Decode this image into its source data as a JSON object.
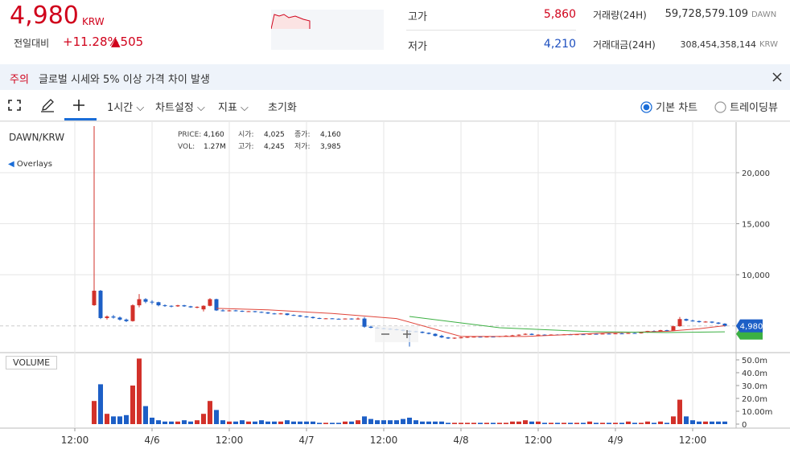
{
  "header": {
    "price": "4,980",
    "currency": "KRW",
    "change_label": "전일대비",
    "change_pct": "+11.28%",
    "change_amt": "▲505",
    "stats": [
      {
        "label": "고가",
        "value": "5,860"
      },
      {
        "label": "저가",
        "value": "4,210"
      },
      {
        "label": "거래량(24H)",
        "value": "59,728,579.109",
        "unit": "DAWN"
      },
      {
        "label": "거래대금(24H)",
        "value": "308,454,358,144",
        "unit": "KRW"
      }
    ]
  },
  "notice": {
    "tag": "주의",
    "text": "글로벌 시세와 5% 이상 가격 차이 발생"
  },
  "toolbar": {
    "interval": "1시간",
    "settings": "차트설정",
    "indicators": "지표",
    "reset": "초기화",
    "modes": [
      "기본 차트",
      "트레이딩뷰"
    ]
  },
  "chart": {
    "type": "candlestick",
    "symbol": "DAWN/KRW",
    "overlays": "Overlays",
    "volume_title": "VOLUME",
    "info": [
      [
        "PRICE:",
        "4,160"
      ],
      [
        "시가:",
        "4,025"
      ],
      [
        "종가:",
        "4,160"
      ],
      [
        "VOL:",
        "1.27M"
      ],
      [
        "고가:",
        "4,245"
      ],
      [
        "저가:",
        "3,985"
      ]
    ],
    "up_color": "#d2312a",
    "down_color": "#1d5fc6",
    "xlim": [
      -11.625,
      102.75
    ],
    "xticks": [
      {
        "value": 0,
        "label": "12:00"
      },
      {
        "value": 12,
        "label": "4/6"
      },
      {
        "value": 24,
        "label": "12:00"
      },
      {
        "value": 36,
        "label": "4/7"
      },
      {
        "value": 48,
        "label": "12:00"
      },
      {
        "value": 60,
        "label": "4/8"
      },
      {
        "value": 72,
        "label": "12:00"
      },
      {
        "value": 84,
        "label": "4/9"
      },
      {
        "value": 96,
        "label": "12:00"
      }
    ],
    "ylim": [
      2440,
      24960
    ],
    "yticks": [
      {
        "value": 20000,
        "label": "20,000"
      },
      {
        "value": 15000,
        "label": "15,000"
      },
      {
        "value": 10000,
        "label": "10,000"
      }
    ],
    "vlim": [
      0,
      55000000
    ],
    "vticks": [
      {
        "value": 50000000,
        "label": "50.0m"
      },
      {
        "value": 40000000,
        "label": "40.0m"
      },
      {
        "value": 30000000,
        "label": "30.0m"
      },
      {
        "value": 20000000,
        "label": "20.0m"
      },
      {
        "value": 10000000,
        "label": "10.00m"
      },
      0
    ],
    "last_price": {
      "value": 4980,
      "label": "4,980"
    },
    "candles": {
      "x": [
        3,
        4,
        5,
        6,
        7,
        8,
        9,
        10,
        11,
        12,
        13,
        14,
        15,
        16,
        17,
        18,
        19,
        20,
        21,
        22,
        23,
        24,
        25,
        26,
        27,
        28,
        29,
        30,
        31,
        32,
        33,
        34,
        35,
        36,
        37,
        38,
        39,
        40,
        41,
        42,
        43,
        44,
        45,
        46,
        47,
        48,
        49,
        50,
        51,
        52,
        53,
        54,
        55,
        56,
        57,
        58,
        59,
        60,
        61,
        62,
        63,
        64,
        65,
        66,
        67,
        68,
        69,
        70,
        71,
        72,
        73,
        74,
        75,
        76,
        77,
        78,
        79,
        80,
        81,
        82,
        83,
        84,
        85,
        86,
        87,
        88,
        89,
        90,
        91,
        92,
        93,
        94,
        95,
        96,
        97,
        98,
        99,
        100,
        101
      ],
      "open": [
        7010,
        8430,
        5750,
        5900,
        5800,
        5600,
        5450,
        7000,
        7600,
        7350,
        7300,
        7000,
        6950,
        6900,
        7000,
        6900,
        6800,
        6600,
        6950,
        7600,
        6500,
        6450,
        6500,
        6450,
        6400,
        6420,
        6350,
        6300,
        6200,
        6150,
        6200,
        6050,
        6000,
        5900,
        5850,
        5750,
        5700,
        5720,
        5680,
        5650,
        5700,
        5650,
        5700,
        4900,
        4800,
        4750,
        4700,
        4650,
        4600,
        4500,
        4450,
        4400,
        4300,
        4200,
        4000,
        3850,
        3750,
        3820,
        3850,
        3900,
        3920,
        3880,
        3930,
        3900,
        3980,
        4020,
        4050,
        4120,
        4200,
        4100,
        4120,
        4080,
        4130,
        4100,
        4150,
        4120,
        4160,
        4140,
        4200,
        4180,
        4220,
        4190,
        4240,
        4220,
        4280,
        4250,
        4330,
        4480,
        4450,
        4560,
        4500,
        4950,
        5650,
        5500,
        5450,
        5350,
        5400,
        5300,
        5200
      ],
      "high": [
        24570,
        8500,
        6000,
        6050,
        5900,
        5700,
        7100,
        8100,
        7700,
        7500,
        7350,
        7100,
        7000,
        7050,
        7050,
        6950,
        6900,
        7000,
        7700,
        7650,
        6600,
        6550,
        6550,
        6500,
        6450,
        6450,
        6400,
        6350,
        6250,
        6250,
        6220,
        6100,
        6050,
        5950,
        5900,
        5800,
        5750,
        5750,
        5720,
        5720,
        5730,
        5800,
        5850,
        5000,
        4900,
        4800,
        4750,
        4700,
        4650,
        4550,
        4500,
        4450,
        4350,
        4250,
        4100,
        3900,
        3850,
        3900,
        3950,
        3950,
        3950,
        3950,
        3980,
        4000,
        4050,
        4100,
        4150,
        4250,
        4250,
        4150,
        4150,
        4150,
        4160,
        4180,
        4200,
        4180,
        4200,
        4220,
        4250,
        4240,
        4260,
        4260,
        4280,
        4300,
        4320,
        4350,
        4500,
        4550,
        4600,
        4600,
        5000,
        5860,
        5700,
        5600,
        5500,
        5450,
        5420,
        5350,
        5250
      ],
      "low": [
        6950,
        5650,
        5600,
        5700,
        5500,
        5350,
        5400,
        6800,
        7200,
        7100,
        6900,
        6850,
        6800,
        6850,
        6850,
        6750,
        6700,
        6400,
        6900,
        6450,
        6400,
        6400,
        6400,
        6350,
        6350,
        6300,
        6250,
        6150,
        6100,
        6100,
        6000,
        5950,
        5850,
        5800,
        5700,
        5650,
        5650,
        5650,
        5600,
        5620,
        5600,
        5600,
        4800,
        4750,
        4700,
        4650,
        4600,
        4550,
        4450,
        2950,
        4350,
        4250,
        4150,
        3950,
        3800,
        3700,
        3700,
        3750,
        3800,
        3850,
        3850,
        3850,
        3880,
        3880,
        3950,
        3980,
        4000,
        4080,
        4080,
        4050,
        4050,
        4050,
        4080,
        4080,
        4100,
        4100,
        4120,
        4120,
        4150,
        4150,
        4170,
        4170,
        4200,
        4200,
        4230,
        4230,
        4300,
        4400,
        4420,
        4450,
        4480,
        4900,
        5450,
        5400,
        5300,
        5300,
        5250,
        5150,
        4900
      ],
      "close": [
        8430,
        5750,
        5900,
        5800,
        5600,
        5450,
        7000,
        7600,
        7350,
        7300,
        7000,
        6950,
        6900,
        7000,
        6900,
        6800,
        6850,
        6950,
        7600,
        6500,
        6450,
        6500,
        6450,
        6400,
        6420,
        6350,
        6300,
        6200,
        6150,
        6200,
        6050,
        6000,
        5900,
        5850,
        5750,
        5700,
        5720,
        5680,
        5650,
        5700,
        5650,
        5700,
        4900,
        4800,
        4750,
        4700,
        4650,
        4600,
        4500,
        4450,
        4400,
        4300,
        4200,
        4000,
        3850,
        3750,
        3820,
        3850,
        3900,
        3920,
        3880,
        3930,
        3900,
        3980,
        4020,
        4050,
        4120,
        4200,
        4100,
        4120,
        4080,
        4130,
        4100,
        4150,
        4120,
        4160,
        4140,
        4200,
        4180,
        4220,
        4190,
        4240,
        4220,
        4280,
        4250,
        4330,
        4480,
        4450,
        4560,
        4500,
        4950,
        5650,
        5500,
        5450,
        5350,
        5400,
        5300,
        5200,
        4980
      ],
      "volume": [
        18000000,
        31000000,
        8000000,
        6000000,
        6000000,
        7000000,
        30000000,
        51000000,
        14000000,
        5000000,
        3000000,
        2000000,
        2000000,
        2000000,
        3000000,
        2000000,
        3000000,
        8000000,
        18000000,
        11000000,
        3000000,
        2000000,
        2000000,
        3000000,
        2000000,
        2000000,
        3000000,
        2000000,
        2000000,
        2000000,
        3000000,
        2000000,
        2000000,
        2000000,
        2000000,
        1000000,
        1000000,
        1000000,
        1000000,
        2000000,
        2000000,
        3000000,
        6000000,
        4000000,
        3000000,
        3000000,
        3000000,
        3000000,
        4000000,
        5000000,
        3000000,
        2000000,
        2000000,
        2000000,
        2000000,
        1000000,
        1000000,
        1000000,
        1000000,
        1000000,
        1000000,
        1000000,
        1000000,
        1000000,
        1000000,
        2000000,
        2000000,
        3000000,
        2000000,
        2000000,
        1000000,
        1000000,
        1000000,
        1000000,
        1000000,
        1000000,
        1000000,
        2000000,
        1000000,
        1000000,
        1000000,
        1000000,
        1000000,
        2000000,
        1000000,
        1000000,
        2000000,
        1000000,
        2000000,
        1000000,
        6000000,
        19000000,
        6000000,
        3000000,
        2000000,
        2000000,
        2000000,
        2000000,
        2000000
      ]
    },
    "lines": [
      {
        "color": "#e0453a",
        "x": [
          22,
          30,
          40,
          50,
          60,
          70,
          83,
          92,
          97,
          101
        ],
        "values": [
          6700,
          6550,
          6200,
          5700,
          3950,
          3950,
          4300,
          4450,
          4700,
          5000
        ]
      },
      {
        "color": "#3cb043",
        "x": [
          52,
          66,
          80,
          92,
          101
        ],
        "values": [
          5900,
          4800,
          4420,
          4330,
          4400
        ]
      }
    ]
  }
}
